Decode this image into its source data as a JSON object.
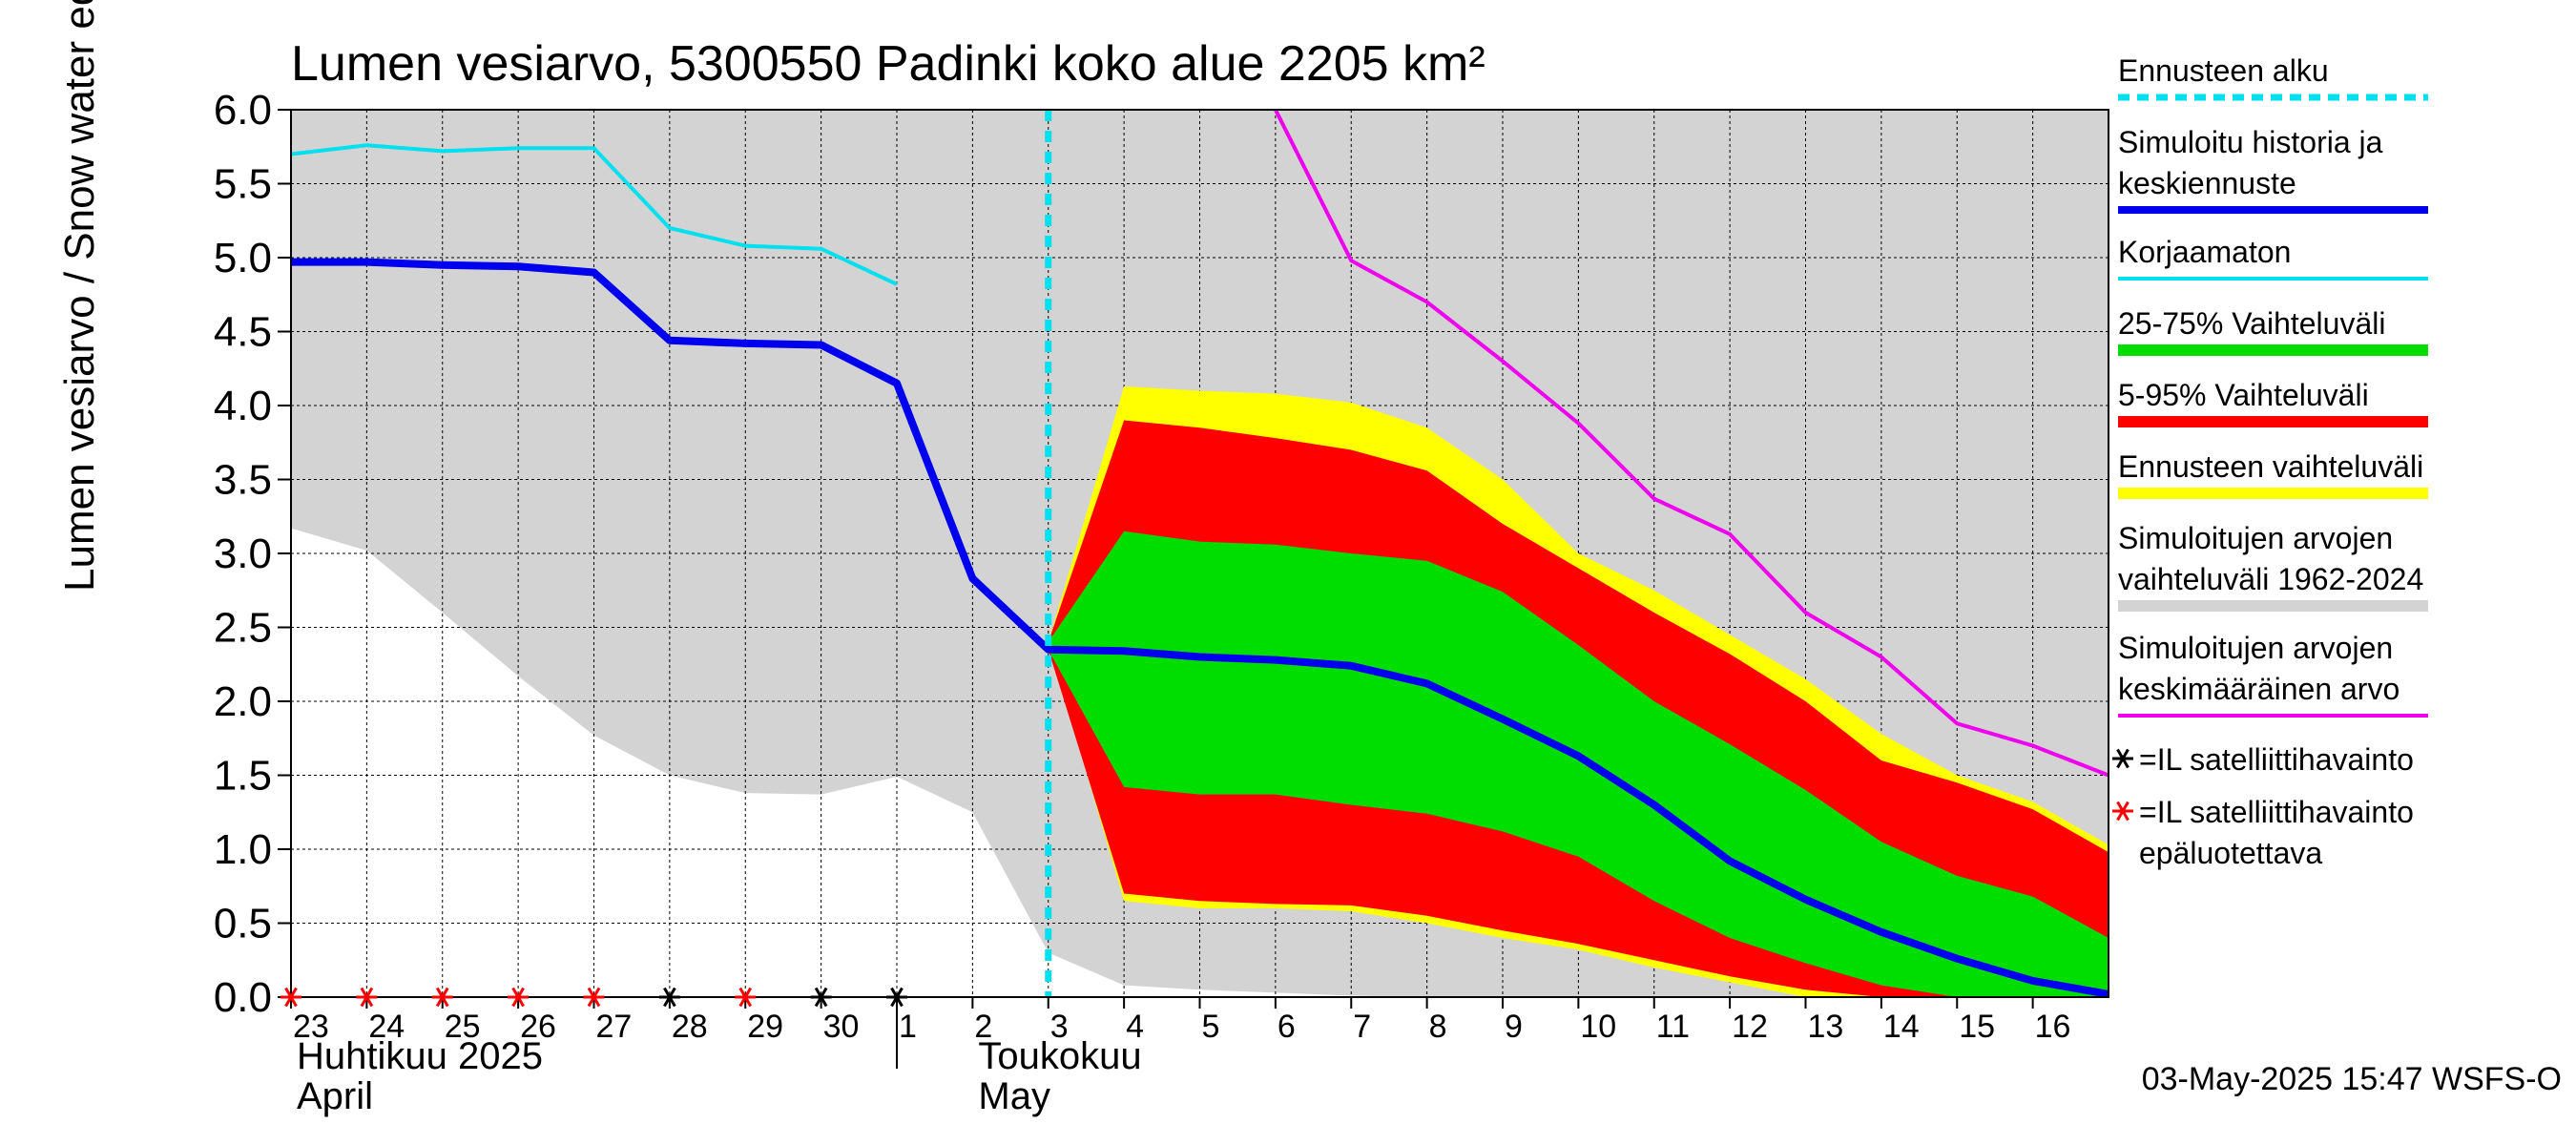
{
  "chart_data": {
    "type": "area",
    "title": "Lumen vesiarvo, 5300550 Padinki koko alue 2205 km²",
    "ylabel": "Lumen vesiarvo / Snow water equiv.    mm",
    "ylim": [
      0,
      6
    ],
    "xlim": [
      0,
      24
    ],
    "yticks": [
      "0.0",
      "0.5",
      "1.0",
      "1.5",
      "2.0",
      "2.5",
      "3.0",
      "3.5",
      "4.0",
      "4.5",
      "5.0",
      "5.5",
      "6.0"
    ],
    "x_tick_labels": [
      "23",
      "24",
      "25",
      "26",
      "27",
      "28",
      "29",
      "30",
      "1",
      "2",
      "3",
      "4",
      "5",
      "6",
      "7",
      "8",
      "9",
      "10",
      "11",
      "12",
      "13",
      "14",
      "15",
      "16"
    ],
    "month_labels": [
      {
        "fi": "Huhtikuu  2025",
        "en": "April",
        "day_index": 0
      },
      {
        "fi": "Toukokuu",
        "en": "May",
        "day_index": 9
      }
    ],
    "forecast_start_day": 10,
    "x": [
      0,
      1,
      2,
      3,
      4,
      5,
      6,
      7,
      8,
      9,
      10,
      11,
      12,
      13,
      14,
      15,
      16,
      17,
      18,
      19,
      20,
      21,
      22,
      23,
      24
    ],
    "historical_range": {
      "name": "Simuloitujen arvojen vaihteluväli 1962-2024",
      "x": [
        0,
        1,
        2,
        3,
        4,
        5,
        6,
        7,
        8,
        9,
        10,
        11,
        12,
        13,
        14,
        15,
        16,
        17,
        18,
        19,
        20,
        21,
        22,
        23,
        24
      ],
      "lower": [
        3.17,
        3.02,
        2.6,
        2.17,
        1.77,
        1.5,
        1.38,
        1.37,
        1.49,
        1.25,
        0.3,
        0.08,
        0.05,
        0.03,
        0.01,
        0.0,
        0,
        0,
        0,
        0,
        0,
        0,
        0,
        0,
        0
      ],
      "upper": [
        6.0,
        6.0,
        6.0,
        6.0,
        6.0,
        6.0,
        6.0,
        6.0,
        6.0,
        6.0,
        6.0,
        6.0,
        6.0,
        6.0,
        6.0,
        6.0,
        6.0,
        6.0,
        6.0,
        6.0,
        6.0,
        6.0,
        6.0,
        6.0,
        6.0
      ]
    },
    "ensemble_range": {
      "name": "Ennusteen vaihteluväli",
      "x": [
        10,
        11,
        12,
        13,
        14,
        15,
        16,
        17,
        18,
        19,
        20,
        21,
        22,
        23,
        24
      ],
      "lower": [
        2.4,
        0.65,
        0.6,
        0.6,
        0.58,
        0.5,
        0.4,
        0.32,
        0.2,
        0.1,
        0.0,
        0.0,
        0.0,
        0.0,
        0.0
      ],
      "upper": [
        2.4,
        4.13,
        4.1,
        4.08,
        4.02,
        3.85,
        3.5,
        3.0,
        2.75,
        2.45,
        2.15,
        1.78,
        1.5,
        1.32,
        1.03
      ]
    },
    "range_5_95": {
      "name": "5-95% Vaihteluväli",
      "x": [
        10,
        11,
        12,
        13,
        14,
        15,
        16,
        17,
        18,
        19,
        20,
        21,
        22,
        23,
        24
      ],
      "lower": [
        2.35,
        0.7,
        0.65,
        0.63,
        0.62,
        0.55,
        0.45,
        0.36,
        0.25,
        0.14,
        0.05,
        0.0,
        0.0,
        0.0,
        0.0
      ],
      "upper": [
        2.4,
        3.9,
        3.85,
        3.78,
        3.7,
        3.56,
        3.2,
        2.9,
        2.6,
        2.32,
        2.0,
        1.6,
        1.45,
        1.27,
        0.98
      ]
    },
    "range_25_75": {
      "name": "25-75% Vaihteluväli",
      "x": [
        10,
        11,
        12,
        13,
        14,
        15,
        16,
        17,
        18,
        19,
        20,
        21,
        22,
        23,
        24
      ],
      "lower": [
        2.35,
        1.42,
        1.37,
        1.37,
        1.3,
        1.24,
        1.12,
        0.95,
        0.65,
        0.4,
        0.23,
        0.08,
        0.0,
        0.0,
        0.0
      ],
      "upper": [
        2.4,
        3.15,
        3.08,
        3.06,
        3.0,
        2.95,
        2.74,
        2.38,
        2.0,
        1.71,
        1.4,
        1.05,
        0.82,
        0.68,
        0.4
      ]
    },
    "series": [
      {
        "name": "Simuloitu historia ja keskiennuste",
        "color": "#0000ee",
        "x": [
          0,
          1,
          2,
          3,
          4,
          5,
          6,
          7,
          8,
          9,
          10,
          11,
          12,
          13,
          14,
          15,
          16,
          17,
          18,
          19,
          20,
          21,
          22,
          23,
          24
        ],
        "values": [
          4.97,
          4.97,
          4.95,
          4.94,
          4.9,
          4.44,
          4.42,
          4.41,
          4.15,
          2.83,
          2.35,
          2.34,
          2.3,
          2.28,
          2.24,
          2.12,
          1.88,
          1.63,
          1.3,
          0.92,
          0.66,
          0.44,
          0.26,
          0.11,
          0.02
        ]
      },
      {
        "name": "Korjaamaton",
        "color": "#00e0ee",
        "x": [
          0,
          1,
          2,
          3,
          4,
          5,
          6,
          7,
          8
        ],
        "values": [
          5.7,
          5.76,
          5.72,
          5.74,
          5.74,
          5.2,
          5.08,
          5.06,
          4.82
        ]
      },
      {
        "name": "Simuloitujen arvojen keskimääräinen arvo",
        "color": "#ee00ee",
        "x": [
          13,
          14,
          15,
          16,
          17,
          18,
          19,
          20,
          21,
          22,
          23,
          24
        ],
        "values": [
          6.0,
          4.98,
          4.7,
          4.3,
          3.88,
          3.37,
          3.13,
          2.6,
          2.3,
          1.85,
          1.7,
          1.5
        ]
      }
    ],
    "satellite_obs": [
      {
        "x": 0,
        "reliable": false
      },
      {
        "x": 1,
        "reliable": false
      },
      {
        "x": 2,
        "reliable": false
      },
      {
        "x": 3,
        "reliable": false
      },
      {
        "x": 4,
        "reliable": false
      },
      {
        "x": 5,
        "reliable": true
      },
      {
        "x": 6,
        "reliable": false
      },
      {
        "x": 7,
        "reliable": true
      },
      {
        "x": 8,
        "reliable": true
      }
    ],
    "legend": [
      {
        "label": "Ennusteen alku",
        "color": "#00e0ee",
        "style": "dashed"
      },
      {
        "label": "Simuloitu historia ja keskiennuste",
        "color": "#0000ee",
        "style": "thick"
      },
      {
        "label": "Korjaamaton",
        "color": "#00e0ee",
        "style": "line"
      },
      {
        "label": "25-75% Vaihteluväli",
        "color": "#00dd00",
        "style": "band"
      },
      {
        "label": "5-95% Vaihteluväli",
        "color": "#ff0000",
        "style": "band"
      },
      {
        "label": "Ennusteen vaihteluväli",
        "color": "#ffff00",
        "style": "band"
      },
      {
        "label": "Simuloitujen arvojen vaihteluväli 1962-2024",
        "color": "#d3d3d3",
        "style": "band"
      },
      {
        "label": "Simuloitujen arvojen keskimääräinen arvo",
        "color": "#ee00ee",
        "style": "line"
      },
      {
        "label": "=IL satelliittihavainto",
        "color": "#000000",
        "style": "star"
      },
      {
        "label": "=IL satelliittihavainto epäluotettava",
        "color": "#ff0000",
        "style": "star"
      }
    ],
    "timestamp": "03-May-2025 15:47 WSFS-O"
  }
}
